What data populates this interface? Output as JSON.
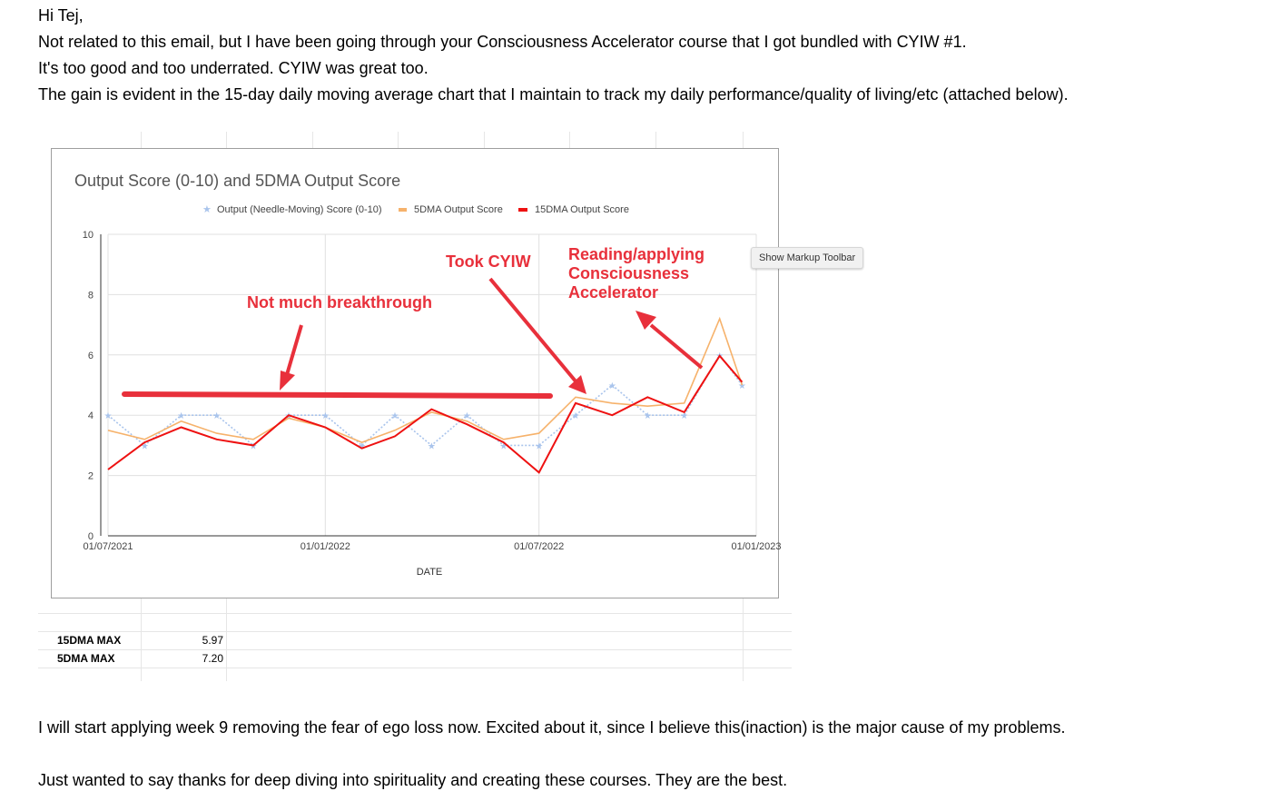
{
  "email": {
    "greeting": "Hi Tej,",
    "paragraph_1": "Not related to this email, but I have been going through your Consciousness Accelerator course that I got bundled with CYIW #1.",
    "paragraph_2": "It's too good and too underrated. CYIW was great too.",
    "paragraph_3": "The gain is evident in the 15-day daily moving average chart that I maintain to track my daily performance/quality of living/etc (attached below).",
    "paragraph_4": "I will start applying week 9 removing the fear of ego loss now. Excited about it, since I believe this(inaction) is the major cause of my problems.",
    "paragraph_5": "Just wanted to say thanks for deep diving into spirituality and creating these courses. They are the best."
  },
  "tooltip": {
    "label": "Show Markup Toolbar"
  },
  "stats": [
    {
      "label": "15DMA MAX",
      "value": "5.97"
    },
    {
      "label": "5DMA MAX",
      "value": "7.20"
    }
  ],
  "annotations": {
    "not_much": "Not much breakthrough",
    "took_cyiw": "Took CYIW",
    "reading_1": "Reading/applying",
    "reading_2": "Consciousness",
    "reading_3": "Accelerator"
  },
  "colors": {
    "output": "#a9c4ec",
    "fivedma": "#f6b26b",
    "fifteendma": "#ee1111",
    "annotation": "#e8303b",
    "grid": "#e0e0e0"
  },
  "chart_data": {
    "type": "line",
    "title": "Output Score (0-10) and 5DMA Output Score",
    "xlabel": "DATE",
    "ylabel": "",
    "ylim": [
      0,
      10
    ],
    "yticks": [
      "0",
      "2",
      "4",
      "6",
      "8",
      "10"
    ],
    "xticks": [
      "01/07/2021",
      "01/01/2022",
      "01/07/2022",
      "01/01/2023"
    ],
    "xlim": [
      "2021-07-01",
      "2023-01-01"
    ],
    "legend_position": "top",
    "grid": true,
    "series": [
      {
        "name": "Output (Needle-Moving) Score (0-10)",
        "style": "dotted-star",
        "x": [
          "2021-07-01",
          "2021-08-01",
          "2021-09-01",
          "2021-10-01",
          "2021-11-01",
          "2021-12-01",
          "2022-01-01",
          "2022-02-01",
          "2022-03-01",
          "2022-04-01",
          "2022-05-01",
          "2022-06-01",
          "2022-07-01",
          "2022-08-01",
          "2022-09-01",
          "2022-10-01",
          "2022-11-01",
          "2022-12-01",
          "2022-12-20"
        ],
        "values": [
          4,
          3,
          4,
          4,
          3,
          4,
          4,
          3,
          4,
          3,
          4,
          3,
          3,
          4,
          5,
          4,
          4,
          6,
          5
        ]
      },
      {
        "name": "5DMA Output Score",
        "style": "line",
        "x": [
          "2021-07-01",
          "2021-08-01",
          "2021-09-01",
          "2021-10-01",
          "2021-11-01",
          "2021-12-01",
          "2022-01-01",
          "2022-02-01",
          "2022-03-01",
          "2022-04-01",
          "2022-05-01",
          "2022-06-01",
          "2022-07-01",
          "2022-08-01",
          "2022-09-01",
          "2022-10-01",
          "2022-11-01",
          "2022-12-01",
          "2022-12-20"
        ],
        "values": [
          3.5,
          3.2,
          3.8,
          3.4,
          3.2,
          3.9,
          3.6,
          3.1,
          3.5,
          4.1,
          3.8,
          3.2,
          3.4,
          4.6,
          4.4,
          4.3,
          4.4,
          7.2,
          5.0
        ]
      },
      {
        "name": "15DMA Output Score",
        "style": "line",
        "x": [
          "2021-07-01",
          "2021-08-01",
          "2021-09-01",
          "2021-10-01",
          "2021-11-01",
          "2021-12-01",
          "2022-01-01",
          "2022-02-01",
          "2022-03-01",
          "2022-04-01",
          "2022-05-01",
          "2022-06-01",
          "2022-07-01",
          "2022-08-01",
          "2022-09-01",
          "2022-10-01",
          "2022-11-01",
          "2022-12-01",
          "2022-12-20"
        ],
        "values": [
          2.2,
          3.1,
          3.6,
          3.2,
          3.0,
          4.0,
          3.6,
          2.9,
          3.3,
          4.2,
          3.7,
          3.1,
          2.1,
          4.4,
          4.0,
          4.6,
          4.1,
          5.97,
          5.1
        ]
      }
    ]
  }
}
